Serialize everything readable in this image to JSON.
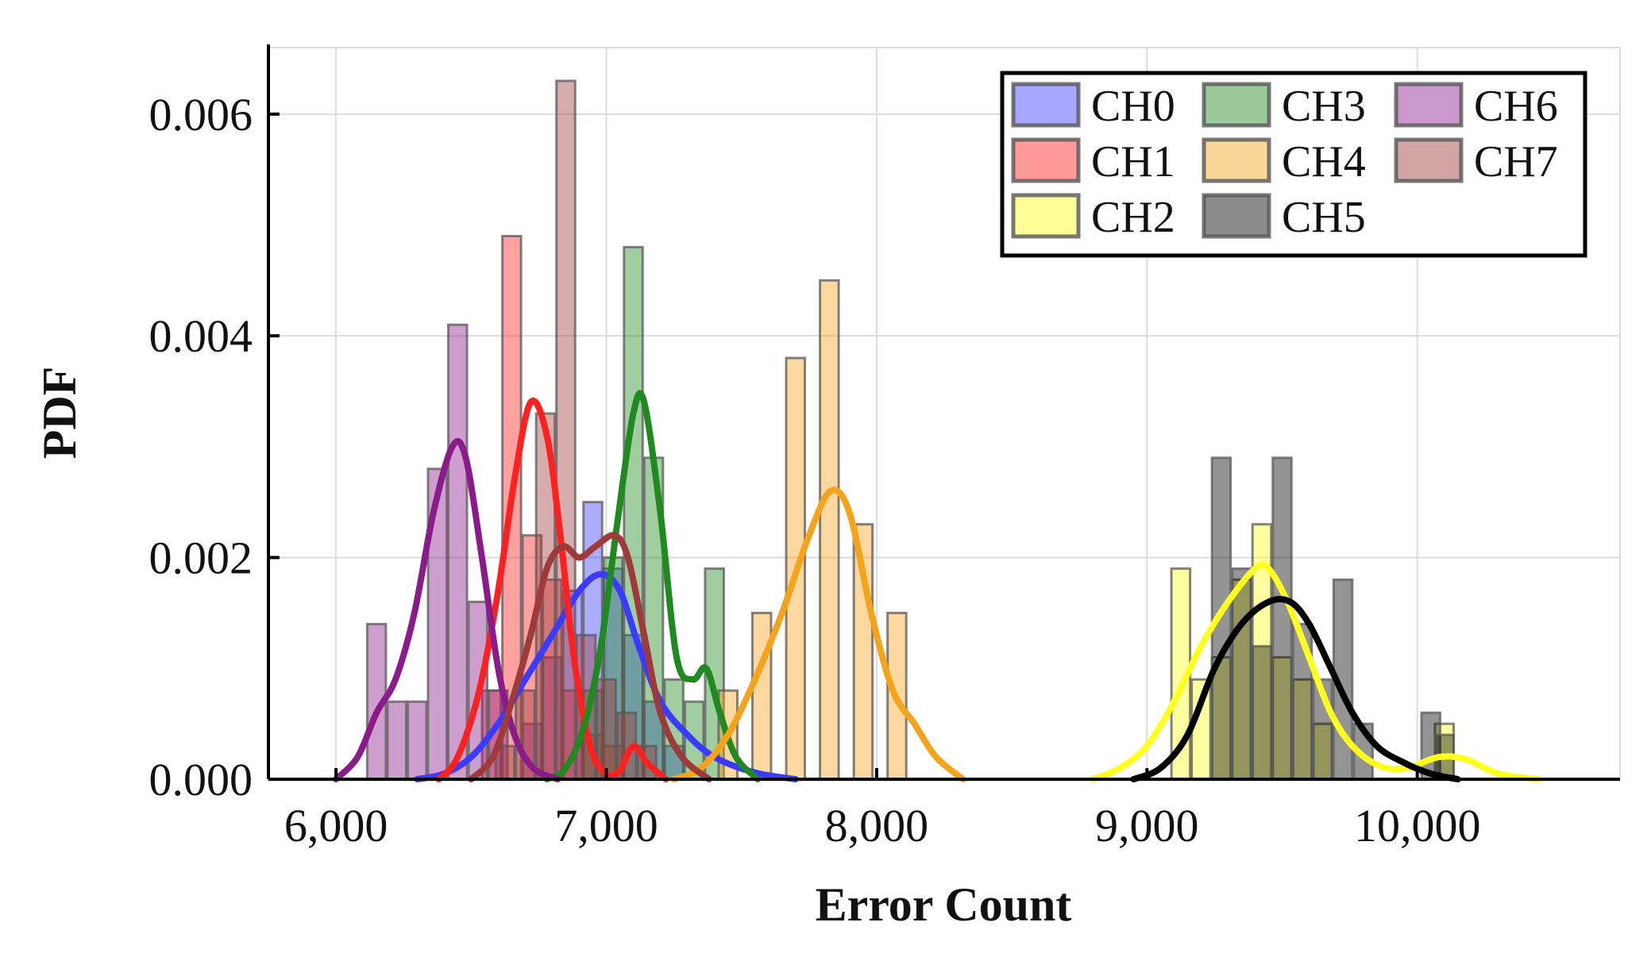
{
  "chart_data": {
    "type": "histogram",
    "xlabel": "Error Count",
    "ylabel": "PDF",
    "xlim": [
      5750,
      10750
    ],
    "ylim": [
      0,
      0.0066
    ],
    "xticks": [
      6000,
      7000,
      8000,
      9000,
      10000
    ],
    "yticks": [
      0,
      0.002,
      0.004,
      0.006
    ],
    "x_tick_labels": [
      "6,000",
      "7,000",
      "8,000",
      "9,000",
      "10,000"
    ],
    "y_tick_labels": [
      "0.000",
      "0.002",
      "0.004",
      "0.006"
    ],
    "grid": true,
    "bin_width": 75,
    "legend_position": "top-right",
    "series": [
      {
        "name": "CH0",
        "color": "#3b3bff",
        "bars": [
          [
            6725,
            0.0005
          ],
          [
            6800,
            0.0011
          ],
          [
            6875,
            0.0017
          ],
          [
            6950,
            0.0025
          ],
          [
            7025,
            0.0019
          ],
          [
            7100,
            0.0013
          ],
          [
            7175,
            0.0007
          ],
          [
            7250,
            0.0003
          ]
        ],
        "kde": [
          [
            6300,
            0
          ],
          [
            6400,
            5e-05
          ],
          [
            6500,
            0.0002
          ],
          [
            6600,
            0.0005
          ],
          [
            6700,
            0.0009
          ],
          [
            6800,
            0.0013
          ],
          [
            6900,
            0.0017
          ],
          [
            6980,
            0.00185
          ],
          [
            7050,
            0.0017
          ],
          [
            7120,
            0.0012
          ],
          [
            7200,
            0.0007
          ],
          [
            7300,
            0.0004
          ],
          [
            7400,
            0.0002
          ],
          [
            7550,
            6e-05
          ],
          [
            7700,
            0
          ]
        ]
      },
      {
        "name": "CH1",
        "color": "#ff2020",
        "bars": [
          [
            6575,
            0.0008
          ],
          [
            6650,
            0.0049
          ],
          [
            6725,
            0.0022
          ],
          [
            6800,
            0.0018
          ],
          [
            6875,
            0.0008
          ],
          [
            6950,
            0.0004
          ],
          [
            7025,
            0.0003
          ]
        ],
        "kde": [
          [
            6380,
            0
          ],
          [
            6450,
            0.0002
          ],
          [
            6530,
            0.0008
          ],
          [
            6600,
            0.0017
          ],
          [
            6660,
            0.0027
          ],
          [
            6720,
            0.0034
          ],
          [
            6780,
            0.0031
          ],
          [
            6830,
            0.0022
          ],
          [
            6880,
            0.0011
          ],
          [
            6940,
            0.0003
          ],
          [
            7000,
            5e-05
          ],
          [
            7050,
            8e-05
          ],
          [
            7100,
            0.0003
          ],
          [
            7150,
            0.00015
          ],
          [
            7220,
            0
          ]
        ]
      },
      {
        "name": "CH2",
        "color": "#ffff20",
        "bars": [
          [
            9125,
            0.0019
          ],
          [
            9200,
            0.0009
          ],
          [
            9275,
            0.0011
          ],
          [
            9350,
            0.0018
          ],
          [
            9425,
            0.0023
          ],
          [
            9500,
            0.0011
          ],
          [
            9575,
            0.0009
          ],
          [
            9650,
            0.0005
          ],
          [
            10100,
            0.0005
          ]
        ],
        "kde": [
          [
            8800,
            0
          ],
          [
            8900,
            0.0001
          ],
          [
            9000,
            0.0003
          ],
          [
            9100,
            0.0007
          ],
          [
            9200,
            0.0012
          ],
          [
            9300,
            0.0016
          ],
          [
            9400,
            0.0019
          ],
          [
            9450,
            0.0019
          ],
          [
            9520,
            0.0016
          ],
          [
            9600,
            0.0011
          ],
          [
            9680,
            0.0006
          ],
          [
            9760,
            0.0003
          ],
          [
            9860,
            0.00012
          ],
          [
            9960,
            0.0001
          ],
          [
            10080,
            0.0002
          ],
          [
            10180,
            0.00018
          ],
          [
            10300,
            5e-05
          ],
          [
            10450,
            0
          ]
        ]
      },
      {
        "name": "CH3",
        "color": "#1f8a1f",
        "bars": [
          [
            6950,
            0.0008
          ],
          [
            7025,
            0.002
          ],
          [
            7100,
            0.0048
          ],
          [
            7175,
            0.0029
          ],
          [
            7250,
            0.0009
          ],
          [
            7325,
            0.0007
          ],
          [
            7400,
            0.0019
          ]
        ],
        "kde": [
          [
            6780,
            0
          ],
          [
            6850,
            0.0001
          ],
          [
            6920,
            0.0005
          ],
          [
            6980,
            0.0012
          ],
          [
            7040,
            0.0023
          ],
          [
            7100,
            0.0033
          ],
          [
            7140,
            0.0034
          ],
          [
            7200,
            0.0024
          ],
          [
            7260,
            0.0011
          ],
          [
            7320,
            0.0009
          ],
          [
            7370,
            0.001
          ],
          [
            7420,
            0.0006
          ],
          [
            7480,
            0.0002
          ],
          [
            7560,
            0
          ]
        ]
      },
      {
        "name": "CH4",
        "color": "#f5a31a",
        "bars": [
          [
            7450,
            0.0008
          ],
          [
            7575,
            0.0015
          ],
          [
            7700,
            0.0038
          ],
          [
            7825,
            0.0045
          ],
          [
            7950,
            0.0023
          ],
          [
            8075,
            0.0015
          ]
        ],
        "kde": [
          [
            7250,
            0
          ],
          [
            7350,
            0.0001
          ],
          [
            7450,
            0.0004
          ],
          [
            7550,
            0.0009
          ],
          [
            7650,
            0.0015
          ],
          [
            7750,
            0.0022
          ],
          [
            7830,
            0.0026
          ],
          [
            7900,
            0.0024
          ],
          [
            7980,
            0.0015
          ],
          [
            8060,
            0.0008
          ],
          [
            8140,
            0.0005
          ],
          [
            8220,
            0.0002
          ],
          [
            8320,
            0
          ]
        ]
      },
      {
        "name": "CH5",
        "color": "#000000",
        "bars": [
          [
            9275,
            0.0029
          ],
          [
            9350,
            0.0019
          ],
          [
            9425,
            0.0012
          ],
          [
            9500,
            0.0029
          ],
          [
            9575,
            0.0014
          ],
          [
            9650,
            0.0009
          ],
          [
            9725,
            0.0018
          ],
          [
            9800,
            0.0005
          ],
          [
            10050,
            0.0006
          ],
          [
            10100,
            0.0004
          ]
        ],
        "kde": [
          [
            8950,
            0
          ],
          [
            9050,
            0.0001
          ],
          [
            9150,
            0.0004
          ],
          [
            9250,
            0.001
          ],
          [
            9350,
            0.0014
          ],
          [
            9450,
            0.0016
          ],
          [
            9530,
            0.0016
          ],
          [
            9600,
            0.0014
          ],
          [
            9680,
            0.001
          ],
          [
            9760,
            0.0006
          ],
          [
            9850,
            0.0003
          ],
          [
            9950,
            0.00015
          ],
          [
            10050,
            5e-05
          ],
          [
            10150,
            0
          ]
        ]
      },
      {
        "name": "CH6",
        "color": "#8b1a8b",
        "bars": [
          [
            6150,
            0.0014
          ],
          [
            6225,
            0.0007
          ],
          [
            6300,
            0.0007
          ],
          [
            6375,
            0.0028
          ],
          [
            6450,
            0.0041
          ],
          [
            6525,
            0.0016
          ],
          [
            6600,
            0.0008
          ]
        ],
        "kde": [
          [
            6000,
            0
          ],
          [
            6080,
            0.0002
          ],
          [
            6150,
            0.0006
          ],
          [
            6220,
            0.0009
          ],
          [
            6290,
            0.0015
          ],
          [
            6360,
            0.0024
          ],
          [
            6430,
            0.003
          ],
          [
            6480,
            0.0029
          ],
          [
            6540,
            0.002
          ],
          [
            6600,
            0.001
          ],
          [
            6660,
            0.0004
          ],
          [
            6730,
            0.0001
          ],
          [
            6820,
            0
          ]
        ]
      },
      {
        "name": "CH7",
        "color": "#9e3a3a",
        "bars": [
          [
            6625,
            0.0003
          ],
          [
            6700,
            0.0008
          ],
          [
            6775,
            0.0033
          ],
          [
            6850,
            0.0063
          ],
          [
            6925,
            0.0013
          ],
          [
            7000,
            0.0009
          ],
          [
            7075,
            0.0006
          ],
          [
            7150,
            0.0003
          ]
        ],
        "kde": [
          [
            6500,
            0
          ],
          [
            6580,
            0.0002
          ],
          [
            6650,
            0.0007
          ],
          [
            6720,
            0.0013
          ],
          [
            6780,
            0.0019
          ],
          [
            6840,
            0.0021
          ],
          [
            6900,
            0.002
          ],
          [
            6960,
            0.0021
          ],
          [
            7030,
            0.0022
          ],
          [
            7080,
            0.002
          ],
          [
            7140,
            0.0013
          ],
          [
            7200,
            0.0006
          ],
          [
            7280,
            0.0002
          ],
          [
            7380,
            0
          ]
        ]
      }
    ]
  }
}
